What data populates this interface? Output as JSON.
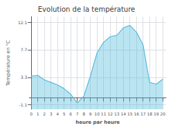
{
  "chart_data": {
    "type": "area",
    "title": "Evolution de la température",
    "xlabel": "heure par heure",
    "ylabel": "Température en °C",
    "x": [
      0,
      1,
      2,
      3,
      4,
      5,
      6,
      7,
      8,
      9,
      10,
      11,
      12,
      13,
      14,
      15,
      16,
      17,
      18,
      19,
      20
    ],
    "values": [
      3.5,
      3.6,
      2.9,
      2.5,
      2.1,
      1.5,
      0.6,
      -0.8,
      0.3,
      3.5,
      7.2,
      8.9,
      9.8,
      10.0,
      11.2,
      11.6,
      10.5,
      8.5,
      2.5,
      2.2,
      3.0
    ],
    "color": "#55bbdd",
    "xlim": [
      -0.3,
      20.5
    ],
    "xticks": [
      0,
      1,
      2,
      3,
      4,
      5,
      6,
      7,
      8,
      9,
      10,
      11,
      12,
      13,
      14,
      15,
      16,
      17,
      18,
      19,
      20
    ],
    "ylim": [
      -1.8,
      13.0
    ],
    "yticks": [
      -1.1,
      3.3,
      7.7,
      12.1
    ],
    "grid": true
  }
}
